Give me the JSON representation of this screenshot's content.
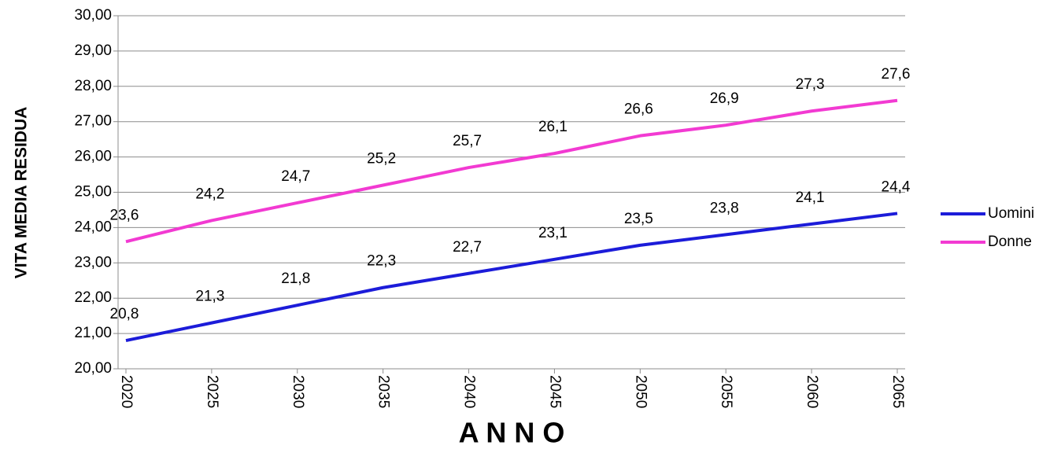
{
  "chart_data": {
    "type": "line",
    "y_label": "VITA  MEDIA  RESIDUA",
    "x_label": "A N N O",
    "categories": [
      "2020",
      "2025",
      "2030",
      "2035",
      "2040",
      "2045",
      "2050",
      "2055",
      "2060",
      "2065"
    ],
    "series": [
      {
        "name": "Uomini",
        "color": "#1c1cd9",
        "values": [
          20.8,
          21.3,
          21.8,
          22.3,
          22.7,
          23.1,
          23.5,
          23.8,
          24.1,
          24.4
        ],
        "value_labels": [
          "20,8",
          "21,3",
          "21,8",
          "22,3",
          "22,7",
          "23,1",
          "23,5",
          "23,8",
          "24,1",
          "24,4"
        ]
      },
      {
        "name": "Donne",
        "color": "#f23ad2",
        "values": [
          23.6,
          24.2,
          24.7,
          25.2,
          25.7,
          26.1,
          26.6,
          26.9,
          27.3,
          27.6
        ],
        "value_labels": [
          "23,6",
          "24,2",
          "24,7",
          "25,2",
          "25,7",
          "26,1",
          "26,6",
          "26,9",
          "27,3",
          "27,6"
        ]
      }
    ],
    "ylim": [
      20,
      30
    ],
    "yticks": [
      {
        "value": 20,
        "label": "20,00"
      },
      {
        "value": 21,
        "label": "21,00"
      },
      {
        "value": 22,
        "label": "22,00"
      },
      {
        "value": 23,
        "label": "23,00"
      },
      {
        "value": 24,
        "label": "24,00"
      },
      {
        "value": 25,
        "label": "25,00"
      },
      {
        "value": 26,
        "label": "26,00"
      },
      {
        "value": 27,
        "label": "27,00"
      },
      {
        "value": 28,
        "label": "28,00"
      },
      {
        "value": 29,
        "label": "29,00"
      },
      {
        "value": 30,
        "label": "30,00"
      }
    ],
    "grid": true,
    "legend": "right"
  }
}
